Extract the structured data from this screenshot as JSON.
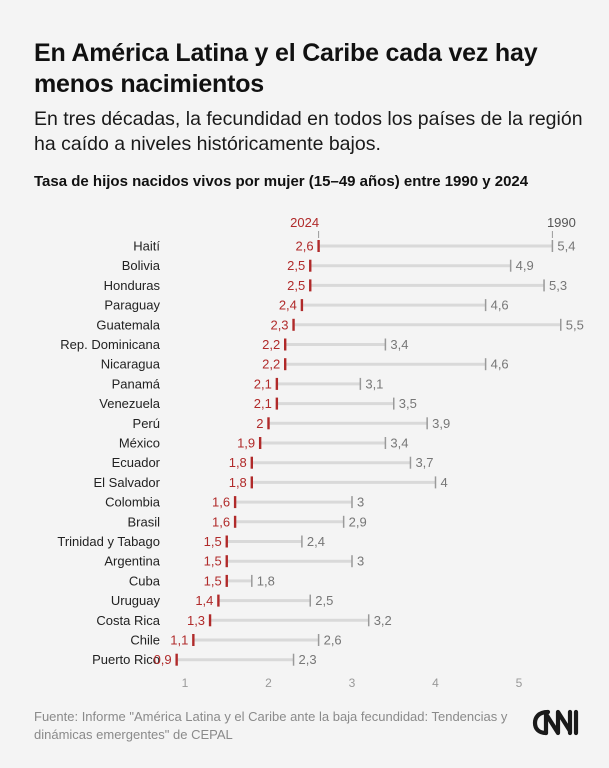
{
  "title": "En América Latina y el Caribe cada vez hay menos nacimientos",
  "subtitle": "En tres décadas, la fecundidad en todos los países de la región ha caído a niveles históricamente bajos.",
  "source": "Fuente: Informe \"América Latina y el Caribe ante la baja fecundidad: Tendencias y dinámicas emergentes\" de CEPAL",
  "logo_text": "CNN",
  "colors": {
    "accent": "#b02a2a",
    "old": "#9a9a9a",
    "bar": "#d9d9d9",
    "text": "#111111"
  },
  "chart_data": {
    "type": "dumbbell",
    "title": "Tasa de hijos nacidos vivos por mujer (15–49 años) entre 1990 y 2024",
    "series_labels": {
      "new": "2024",
      "old": "1990"
    },
    "xlim": [
      0.8,
      5.6
    ],
    "x_ticks": [
      "1",
      "2",
      "3",
      "4",
      "5"
    ],
    "x_tick_values": [
      1,
      2,
      3,
      4,
      5
    ],
    "countries": [
      "Haití",
      "Bolivia",
      "Honduras",
      "Paraguay",
      "Guatemala",
      "Rep. Dominicana",
      "Nicaragua",
      "Panamá",
      "Venezuela",
      "Perú",
      "México",
      "Ecuador",
      "El Salvador",
      "Colombia",
      "Brasil",
      "Trinidad y Tabago",
      "Argentina",
      "Cuba",
      "Uruguay",
      "Costa Rica",
      "Chile",
      "Puerto Rico"
    ],
    "values_2024": [
      2.6,
      2.5,
      2.5,
      2.4,
      2.3,
      2.2,
      2.2,
      2.1,
      2.1,
      2.0,
      1.9,
      1.8,
      1.8,
      1.6,
      1.6,
      1.5,
      1.5,
      1.5,
      1.4,
      1.3,
      1.1,
      0.9
    ],
    "labels_2024": [
      "2,6",
      "2,5",
      "2,5",
      "2,4",
      "2,3",
      "2,2",
      "2,2",
      "2,1",
      "2,1",
      "2",
      "1,9",
      "1,8",
      "1,8",
      "1,6",
      "1,6",
      "1,5",
      "1,5",
      "1,5",
      "1,4",
      "1,3",
      "1,1",
      "0,9"
    ],
    "values_1990": [
      5.4,
      4.9,
      5.3,
      4.6,
      5.5,
      3.4,
      4.6,
      3.1,
      3.5,
      3.9,
      3.4,
      3.7,
      4.0,
      3.0,
      2.9,
      2.4,
      3.0,
      1.8,
      2.5,
      3.2,
      2.6,
      2.3
    ],
    "labels_1990": [
      "5,4",
      "4,9",
      "5,3",
      "4,6",
      "5,5",
      "3,4",
      "4,6",
      "3,1",
      "3,5",
      "3,9",
      "3,4",
      "3,7",
      "4",
      "3",
      "2,9",
      "2,4",
      "3",
      "1,8",
      "2,5",
      "3,2",
      "2,6",
      "2,3"
    ]
  }
}
